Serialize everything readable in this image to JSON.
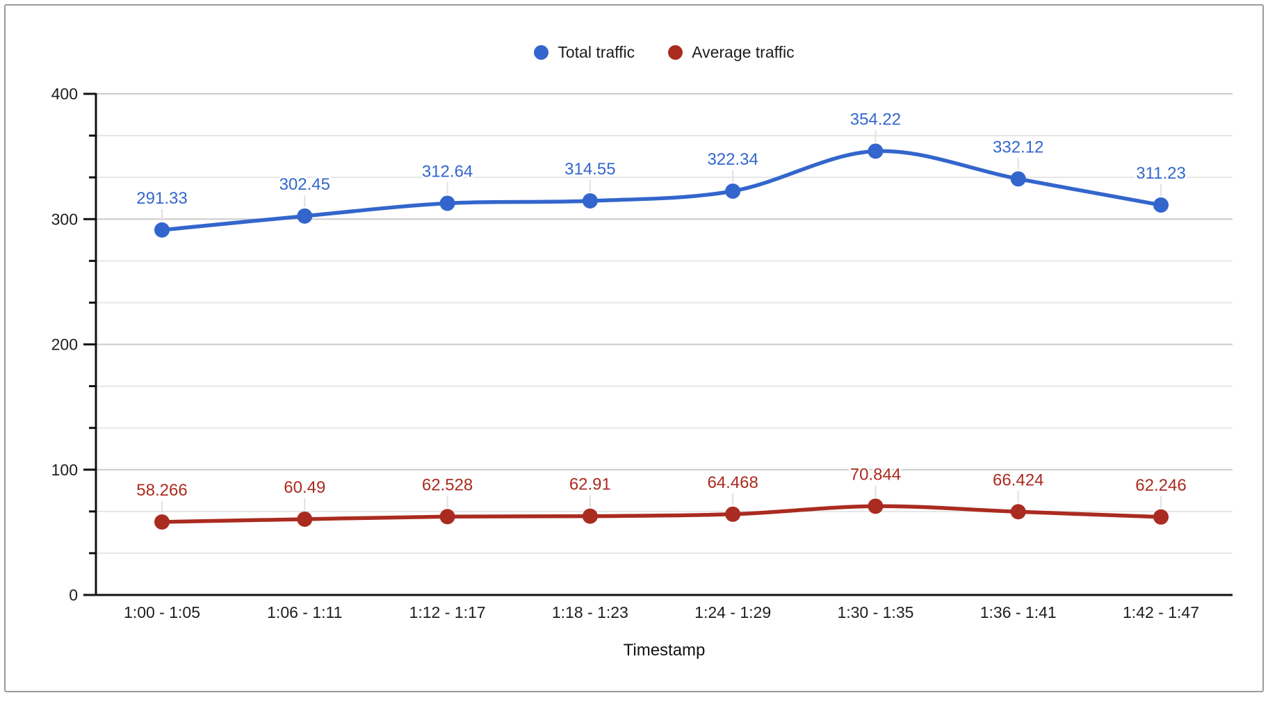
{
  "window": {
    "background": "#ffffff",
    "border_color": "#9a9a9a"
  },
  "legend": {
    "position": "top-center"
  },
  "chart_data": {
    "type": "line",
    "smooth": true,
    "title": "",
    "xlabel": "Timestamp",
    "ylabel": "",
    "x_categories": [
      "1:00 - 1:05",
      "1:06 - 1:11",
      "1:12 - 1:17",
      "1:18 - 1:23",
      "1:24 - 1:29",
      "1:30 - 1:35",
      "1:36 - 1:41",
      "1:42 - 1:47"
    ],
    "y_axis": {
      "min": 0,
      "max": 400,
      "major_step": 100,
      "minors_between_majors": 2,
      "tick_labels": [
        "0",
        "100",
        "200",
        "300",
        "400"
      ]
    },
    "grid": {
      "major_color": "#cbcbcb",
      "minor_color": "#e6e6e6",
      "leader_color": "#e0e0e0",
      "axis_color": "#111111"
    },
    "series": [
      {
        "name": "Total traffic",
        "color": "#3366CC",
        "values": [
          291.33,
          302.45,
          312.64,
          314.55,
          322.34,
          354.22,
          332.12,
          311.23
        ],
        "labels": [
          "291.33",
          "302.45",
          "312.64",
          "314.55",
          "322.34",
          "354.22",
          "332.12",
          "311.23"
        ]
      },
      {
        "name": "Average traffic",
        "color": "#AA2B20",
        "values": [
          58.266,
          60.49,
          62.528,
          62.91,
          64.468,
          70.844,
          66.424,
          62.246
        ],
        "labels": [
          "58.266",
          "60.49",
          "62.528",
          "62.91",
          "64.468",
          "70.844",
          "66.424",
          "62.246"
        ]
      }
    ]
  }
}
